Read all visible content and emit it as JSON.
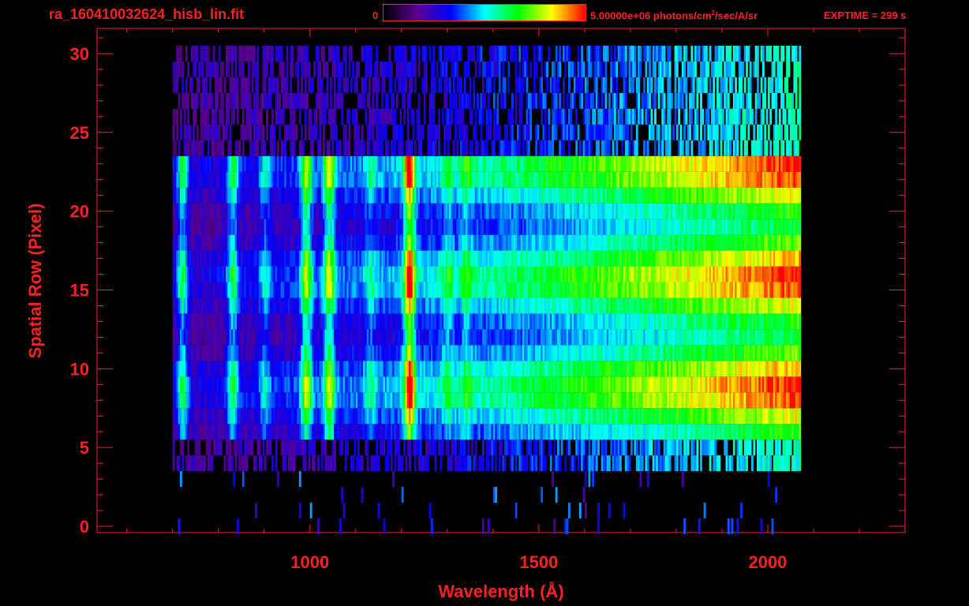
{
  "header": {
    "filename": "ra_160410032624_hisb_lin.fit",
    "colorbar_min": "0",
    "colorbar_max_prefix": "5.00000e+06 photons/cm",
    "colorbar_max_sup": "2",
    "colorbar_max_suffix": "/sec/A/sr",
    "exptime": "EXPTIME = 299 s"
  },
  "colors": {
    "axis": "#ff2020",
    "background": "#000000",
    "colormap": [
      "#000000",
      "#5a0090",
      "#0000ff",
      "#00ffff",
      "#00ff00",
      "#ffff00",
      "#ff0000"
    ]
  },
  "chart_data": {
    "type": "heatmap",
    "title": "ra_160410032624_hisb_lin.fit",
    "xlabel": "Wavelength (Å)",
    "ylabel": "Spatial Row (Pixel)",
    "xlim": [
      535,
      2300
    ],
    "ylim": [
      -0.4,
      31.6
    ],
    "x_ticks": [
      1000,
      1500,
      2000
    ],
    "y_ticks": [
      0,
      5,
      10,
      15,
      20,
      25,
      30
    ],
    "colorbar": {
      "min": 0,
      "max": 5000000,
      "units": "photons/cm2/sec/A/sr"
    },
    "grid": false,
    "spectrum_extent_x": [
      700,
      2070
    ],
    "bright_rows": [
      6,
      23
    ],
    "noise_rows": [
      [
        4,
        6
      ],
      [
        23,
        30
      ]
    ],
    "features": [
      {
        "x": 720,
        "strength": 0.35
      },
      {
        "x": 830,
        "strength": 0.35
      },
      {
        "x": 900,
        "strength": 0.2
      },
      {
        "x": 990,
        "strength": 0.45
      },
      {
        "x": 1040,
        "strength": 0.45
      },
      {
        "x": 1130,
        "strength": 0.15
      },
      {
        "x": 1215,
        "strength": 0.6
      },
      {
        "x": 1300,
        "strength": 0.15
      },
      {
        "x": 1340,
        "strength": 0.15
      }
    ]
  }
}
